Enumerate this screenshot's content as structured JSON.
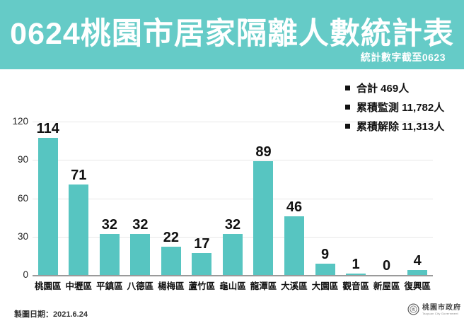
{
  "header": {
    "title": "0624桃園市居家隔離人數統計表",
    "subtitle": "統計數字截至0623"
  },
  "legend": {
    "items": [
      "合計 469人",
      "累積監測 11,782人",
      "累積解除 11,313人"
    ]
  },
  "chart_data": {
    "type": "bar",
    "categories": [
      "桃園區",
      "中壢區",
      "平鎮區",
      "八德區",
      "楊梅區",
      "蘆竹區",
      "龜山區",
      "龍潭區",
      "大溪區",
      "大園區",
      "觀音區",
      "新屋區",
      "復興區"
    ],
    "values": [
      114,
      71,
      32,
      32,
      22,
      17,
      32,
      89,
      46,
      9,
      1,
      0,
      4
    ],
    "title": "0624桃園市居家隔離人數統計表",
    "xlabel": "",
    "ylabel": "",
    "ylim": [
      0,
      120
    ],
    "yticks": [
      0,
      30,
      60,
      90,
      120
    ],
    "grid": true,
    "legend_position": "top-right",
    "annotations": [
      "合計 469人",
      "累積監測 11,782人",
      "累積解除 11,313人"
    ]
  },
  "footer": {
    "date_label": "製圖日期：2021.6.24",
    "logo_text": "桃園市政府",
    "logo_subtext": "Taoyuan City Government"
  },
  "colors": {
    "header_bg": "#65cbc7",
    "bar": "#57c5c1",
    "grid": "#e7e7e7",
    "axis": "#9a9a9a",
    "text": "#111111"
  }
}
